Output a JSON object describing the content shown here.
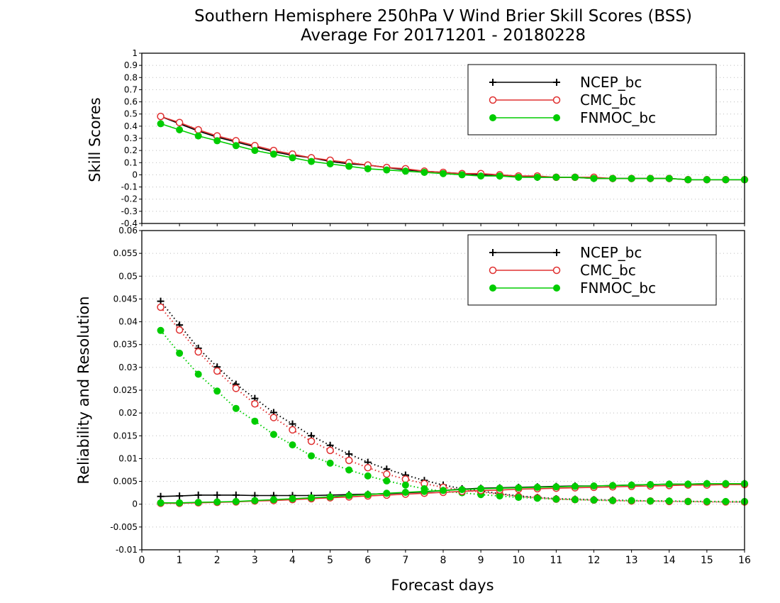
{
  "chart_data": [
    {
      "type": "line",
      "title": "Southern Hemisphere 250hPa V Wind Brier Skill Scores (BSS)",
      "subtitle": "Average For 20171201 - 20180228",
      "ylabel": "Skill Scores",
      "xlabel": "",
      "xlim": [
        0,
        16
      ],
      "ylim": [
        -0.4,
        1.0
      ],
      "y_ticks": [
        "-0.4",
        "-0.3",
        "-0.2",
        "-0.1",
        "0",
        "0.1",
        "0.2",
        "0.3",
        "0.4",
        "0.5",
        "0.6",
        "0.7",
        "0.8",
        "0.9",
        "1"
      ],
      "grid": true,
      "legend_position": "top-right",
      "x": [
        0.5,
        1,
        1.5,
        2,
        2.5,
        3,
        3.5,
        4,
        4.5,
        5,
        5.5,
        6,
        6.5,
        7,
        7.5,
        8,
        8.5,
        9,
        9.5,
        10,
        10.5,
        11,
        11.5,
        12,
        12.5,
        13,
        13.5,
        14,
        14.5,
        15,
        15.5,
        16
      ],
      "series": [
        {
          "name": "NCEP_bc",
          "color": "#000000",
          "marker": "plus",
          "line": "solid",
          "values": [
            0.48,
            0.42,
            0.36,
            0.31,
            0.27,
            0.23,
            0.19,
            0.16,
            0.14,
            0.11,
            0.09,
            0.08,
            0.06,
            0.04,
            0.03,
            0.02,
            0.01,
            0.0,
            -0.01,
            -0.01,
            -0.02,
            -0.02,
            -0.02,
            -0.03,
            -0.03,
            -0.03,
            -0.03,
            -0.03,
            -0.04,
            -0.04,
            -0.04,
            -0.04
          ]
        },
        {
          "name": "CMC_bc",
          "color": "#e03030",
          "marker": "open-circle",
          "line": "solid",
          "values": [
            0.48,
            0.43,
            0.37,
            0.32,
            0.28,
            0.24,
            0.2,
            0.17,
            0.14,
            0.12,
            0.1,
            0.08,
            0.06,
            0.05,
            0.03,
            0.02,
            0.01,
            0.01,
            0.0,
            -0.01,
            -0.01,
            -0.02,
            -0.02,
            -0.02,
            -0.03,
            -0.03,
            -0.03,
            -0.03,
            -0.04,
            -0.04,
            -0.04,
            -0.04
          ]
        },
        {
          "name": "FNMOC_bc",
          "color": "#00cc00",
          "marker": "filled-circle",
          "line": "solid",
          "values": [
            0.42,
            0.37,
            0.32,
            0.28,
            0.24,
            0.2,
            0.17,
            0.14,
            0.11,
            0.09,
            0.07,
            0.05,
            0.04,
            0.03,
            0.02,
            0.01,
            0.0,
            -0.01,
            -0.01,
            -0.02,
            -0.02,
            -0.02,
            -0.02,
            -0.03,
            -0.03,
            -0.03,
            -0.03,
            -0.03,
            -0.04,
            -0.04,
            -0.04,
            -0.04
          ]
        }
      ]
    },
    {
      "type": "line",
      "ylabel": "Reliability and Resolution",
      "xlabel": "Forecast days",
      "xlim": [
        0,
        16
      ],
      "ylim": [
        -0.01,
        0.06
      ],
      "y_ticks": [
        "-0.01",
        "-0.005",
        "0",
        "0.005",
        "0.01",
        "0.015",
        "0.02",
        "0.025",
        "0.03",
        "0.035",
        "0.04",
        "0.045",
        "0.05",
        "0.055",
        "0.06"
      ],
      "x_ticks": [
        "0",
        "1",
        "2",
        "3",
        "4",
        "5",
        "6",
        "7",
        "8",
        "9",
        "10",
        "11",
        "12",
        "13",
        "14",
        "15",
        "16"
      ],
      "grid": true,
      "legend_position": "top-right",
      "x": [
        0.5,
        1,
        1.5,
        2,
        2.5,
        3,
        3.5,
        4,
        4.5,
        5,
        5.5,
        6,
        6.5,
        7,
        7.5,
        8,
        8.5,
        9,
        9.5,
        10,
        10.5,
        11,
        11.5,
        12,
        12.5,
        13,
        13.5,
        14,
        14.5,
        15,
        15.5,
        16
      ],
      "series": [
        {
          "name": "NCEP_bc",
          "color": "#000000",
          "marker": "plus",
          "line": "dotted",
          "values": [
            0.0445,
            0.0393,
            0.0342,
            0.0301,
            0.0263,
            0.0232,
            0.0201,
            0.0176,
            0.015,
            0.0129,
            0.011,
            0.0092,
            0.0077,
            0.0064,
            0.0052,
            0.0042,
            0.0034,
            0.0029,
            0.0023,
            0.0018,
            0.0015,
            0.0012,
            0.0011,
            0.001,
            0.0009,
            0.0008,
            0.0007,
            0.0007,
            0.0006,
            0.0006,
            0.0005,
            0.0005
          ]
        },
        {
          "name": "CMC_bc",
          "color": "#e03030",
          "marker": "open-circle",
          "line": "dotted",
          "values": [
            0.0432,
            0.0382,
            0.0334,
            0.0292,
            0.0254,
            0.022,
            0.019,
            0.0163,
            0.0138,
            0.0118,
            0.0096,
            0.008,
            0.0066,
            0.0055,
            0.0045,
            0.0037,
            0.0031,
            0.0027,
            0.0022,
            0.0017,
            0.0014,
            0.0011,
            0.001,
            0.0009,
            0.0008,
            0.0007,
            0.0007,
            0.0006,
            0.0006,
            0.0005,
            0.0005,
            0.0005
          ]
        },
        {
          "name": "FNMOC_bc",
          "color": "#00cc00",
          "marker": "filled-circle",
          "line": "dotted",
          "values": [
            0.0381,
            0.0331,
            0.0285,
            0.0248,
            0.021,
            0.0182,
            0.0153,
            0.013,
            0.0106,
            0.009,
            0.0075,
            0.0062,
            0.0051,
            0.0042,
            0.0034,
            0.0028,
            0.0025,
            0.0021,
            0.0018,
            0.0015,
            0.0013,
            0.0011,
            0.001,
            0.0009,
            0.0008,
            0.0008,
            0.0007,
            0.0007,
            0.0006,
            0.0006,
            0.0006,
            0.0006
          ]
        },
        {
          "name": "NCEP_bc",
          "color": "#000000",
          "marker": "plus",
          "line": "solid",
          "values": [
            0.0017,
            0.0018,
            0.002,
            0.002,
            0.002,
            0.0019,
            0.0019,
            0.0019,
            0.0019,
            0.002,
            0.0021,
            0.0022,
            0.0023,
            0.0025,
            0.0027,
            0.003,
            0.0033,
            0.0035,
            0.0036,
            0.0037,
            0.0038,
            0.0039,
            0.004,
            0.004,
            0.0041,
            0.0042,
            0.0043,
            0.0044,
            0.0044,
            0.0045,
            0.0045,
            0.0045
          ]
        },
        {
          "name": "CMC_bc",
          "color": "#e03030",
          "marker": "open-circle",
          "line": "solid",
          "values": [
            0.0002,
            0.0002,
            0.0003,
            0.0004,
            0.0005,
            0.0007,
            0.0008,
            0.001,
            0.0012,
            0.0014,
            0.0016,
            0.0018,
            0.002,
            0.0022,
            0.0024,
            0.0026,
            0.0028,
            0.003,
            0.0031,
            0.0033,
            0.0034,
            0.0035,
            0.0036,
            0.0037,
            0.0038,
            0.0039,
            0.004,
            0.0041,
            0.0042,
            0.0042,
            0.0043,
            0.0043
          ]
        },
        {
          "name": "FNMOC_bc",
          "color": "#00cc00",
          "marker": "filled-circle",
          "line": "solid",
          "values": [
            0.0003,
            0.0003,
            0.0004,
            0.0005,
            0.0006,
            0.0008,
            0.001,
            0.0012,
            0.0014,
            0.0016,
            0.0019,
            0.0021,
            0.0024,
            0.0026,
            0.0028,
            0.003,
            0.0032,
            0.0034,
            0.0035,
            0.0036,
            0.0037,
            0.0038,
            0.0039,
            0.004,
            0.0041,
            0.0042,
            0.0043,
            0.0044,
            0.0044,
            0.0045,
            0.0045,
            0.0045
          ]
        }
      ]
    }
  ]
}
